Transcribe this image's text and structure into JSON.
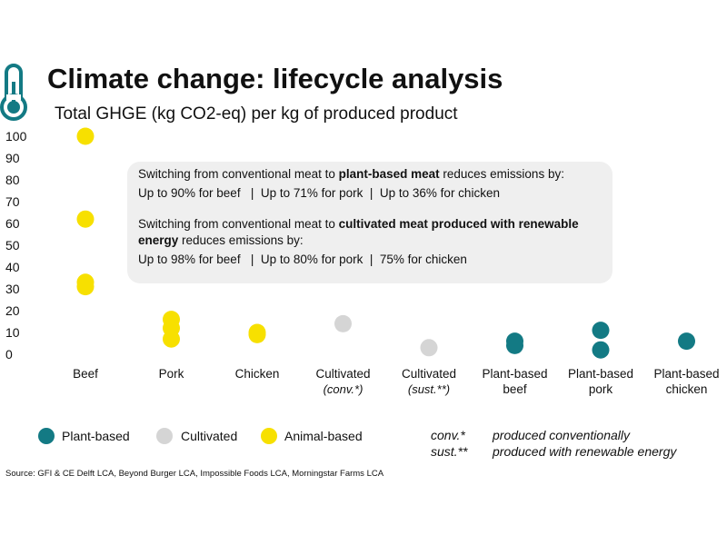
{
  "colors": {
    "plant_based": "#137a84",
    "cultivated": "#d5d5d5",
    "animal_based": "#f7e000",
    "thermometer": "#137a84",
    "callout_bg": "#efefef"
  },
  "icon": "thermometer-icon",
  "callout": {
    "line1_pre": "Switching from conventional meat to ",
    "line1_bold": "plant-based meat",
    "line1_post": " reduces emissions by:",
    "line2": "Up to 90% for beef   |  Up to 71% for pork  |  Up to 36% for chicken",
    "line3_pre": "Switching from conventional meat to ",
    "line3_bold": "cultivated meat produced with renewable energy",
    "line3_post": " reduces emissions by:",
    "line4": "Up to 98% for beef   |  Up to 80% for pork  |  75% for chicken"
  },
  "legend": [
    {
      "label": "Plant-based",
      "color": "#137a84"
    },
    {
      "label": "Cultivated",
      "color": "#d5d5d5"
    },
    {
      "label": "Animal-based",
      "color": "#f7e000"
    }
  ],
  "notes": [
    {
      "key": "conv.*",
      "value": "produced conventionally"
    },
    {
      "key": "sust.**",
      "value": "produced with renewable energy"
    }
  ],
  "source": "Source: GFI & CE Delft LCA, Beyond Burger LCA, Impossible Foods LCA, Morningstar Farms LCA",
  "chart_data": {
    "type": "scatter",
    "title": "Climate change: lifecycle analysis",
    "ylabel": "Total GHGE (kg CO2-eq) per kg of produced product",
    "ylim": [
      0,
      100
    ],
    "yticks": [
      0,
      10,
      20,
      30,
      40,
      50,
      60,
      70,
      80,
      90,
      100
    ],
    "grid": false,
    "legend_position": "bottom-left",
    "categories": [
      {
        "label": "Beef",
        "sub": ""
      },
      {
        "label": "Pork",
        "sub": ""
      },
      {
        "label": "Chicken",
        "sub": ""
      },
      {
        "label": "Cultivated",
        "sub": "(conv.*)"
      },
      {
        "label": "Cultivated",
        "sub": "(sust.**)"
      },
      {
        "label": "Plant-based",
        "sub": "beef"
      },
      {
        "label": "Plant-based",
        "sub": "pork"
      },
      {
        "label": "Plant-based",
        "sub": "chicken"
      }
    ],
    "series": [
      {
        "name": "Animal-based",
        "color": "#f7e000",
        "points": [
          {
            "cat": 0,
            "y": 100
          },
          {
            "cat": 0,
            "y": 62
          },
          {
            "cat": 0,
            "y": 33
          },
          {
            "cat": 0,
            "y": 31
          },
          {
            "cat": 1,
            "y": 16
          },
          {
            "cat": 1,
            "y": 12
          },
          {
            "cat": 1,
            "y": 7
          },
          {
            "cat": 2,
            "y": 10
          },
          {
            "cat": 2,
            "y": 9
          }
        ]
      },
      {
        "name": "Cultivated",
        "color": "#d5d5d5",
        "points": [
          {
            "cat": 3,
            "y": 14
          },
          {
            "cat": 4,
            "y": 3
          }
        ]
      },
      {
        "name": "Plant-based",
        "color": "#137a84",
        "points": [
          {
            "cat": 5,
            "y": 6
          },
          {
            "cat": 5,
            "y": 4
          },
          {
            "cat": 6,
            "y": 11
          },
          {
            "cat": 6,
            "y": 2
          },
          {
            "cat": 7,
            "y": 6
          }
        ]
      }
    ]
  }
}
